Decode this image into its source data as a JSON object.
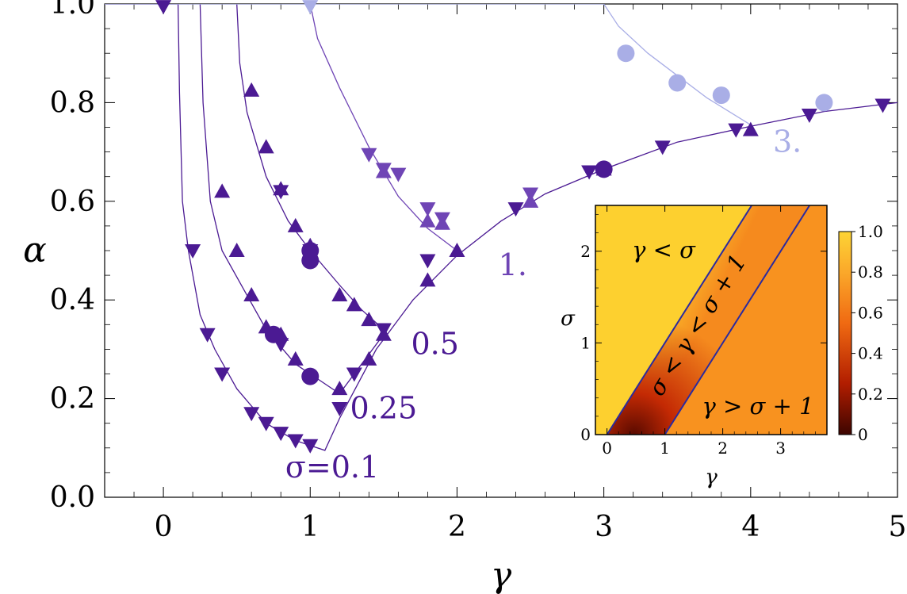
{
  "chart_data": {
    "type": "line",
    "xlabel": "γ",
    "ylabel": "α",
    "xlim": [
      -0.4,
      5
    ],
    "ylim": [
      0,
      1.0
    ],
    "x_ticks": [
      "0",
      "1",
      "2",
      "3",
      "4",
      "5"
    ],
    "y_ticks": [
      "0.0",
      "0.2",
      "0.4",
      "0.6",
      "0.8",
      "1.0"
    ],
    "colors": {
      "dark": "#4b1a93",
      "mid": "#6f45b5",
      "light": "#a9aee6"
    },
    "curve_labels": [
      {
        "text": "σ=0.1",
        "x": 1.15,
        "y": 0.04,
        "color": "#4b1a93"
      },
      {
        "text": "0.25",
        "x": 1.5,
        "y": 0.16,
        "color": "#4b1a93"
      },
      {
        "text": "0.5",
        "x": 1.85,
        "y": 0.29,
        "color": "#4b1a93"
      },
      {
        "text": "1.",
        "x": 2.38,
        "y": 0.45,
        "color": "#6f45b5"
      },
      {
        "text": "3.",
        "x": 4.25,
        "y": 0.7,
        "color": "#a9aee6"
      }
    ],
    "series": [
      {
        "sigma": 0.1,
        "color": "#4b1a93",
        "curve": [
          [
            -0.4,
            1
          ],
          [
            0.1,
            1
          ],
          [
            0.11,
            0.82
          ],
          [
            0.13,
            0.6
          ],
          [
            0.17,
            0.5
          ],
          [
            0.25,
            0.37
          ],
          [
            0.35,
            0.3
          ],
          [
            0.5,
            0.22
          ],
          [
            0.7,
            0.15
          ],
          [
            0.9,
            0.115
          ],
          [
            1.1,
            0.095
          ],
          [
            1.2,
            0.16
          ],
          [
            1.45,
            0.3
          ],
          [
            1.7,
            0.4
          ],
          [
            2.0,
            0.49
          ],
          [
            2.3,
            0.56
          ],
          [
            2.6,
            0.615
          ],
          [
            3.0,
            0.665
          ],
          [
            3.5,
            0.72
          ],
          [
            4.0,
            0.752
          ],
          [
            4.5,
            0.782
          ],
          [
            5,
            0.8
          ]
        ],
        "points_down": [
          [
            0,
            0.995
          ],
          [
            0.2,
            0.5
          ],
          [
            0.3,
            0.33
          ],
          [
            0.4,
            0.25
          ],
          [
            0.6,
            0.17
          ],
          [
            0.7,
            0.15
          ],
          [
            0.8,
            0.13
          ],
          [
            0.9,
            0.115
          ],
          [
            1.0,
            0.105
          ],
          [
            1.2,
            0.18
          ],
          [
            1.8,
            0.48
          ],
          [
            2.4,
            0.585
          ],
          [
            2.9,
            0.66
          ],
          [
            3.4,
            0.71
          ],
          [
            3.9,
            0.745
          ],
          [
            4.4,
            0.775
          ],
          [
            4.9,
            0.795
          ]
        ],
        "points_up": [],
        "points_circle": []
      },
      {
        "sigma": 0.25,
        "color": "#4b1a93",
        "curve": [
          [
            0.25,
            1
          ],
          [
            0.27,
            0.8
          ],
          [
            0.32,
            0.6
          ],
          [
            0.4,
            0.5
          ],
          [
            0.55,
            0.42
          ],
          [
            0.7,
            0.34
          ],
          [
            0.9,
            0.27
          ],
          [
            1.0,
            0.25
          ],
          [
            1.2,
            0.21
          ],
          [
            1.5,
            0.33
          ]
        ],
        "points_down": [
          [
            0.8,
            0.31
          ],
          [
            1.3,
            0.25
          ]
        ],
        "points_up": [
          [
            0.4,
            0.62
          ],
          [
            0.5,
            0.5
          ],
          [
            0.6,
            0.41
          ],
          [
            0.7,
            0.345
          ],
          [
            0.8,
            0.33
          ],
          [
            0.9,
            0.28
          ],
          [
            1.2,
            0.22
          ],
          [
            1.4,
            0.28
          ],
          [
            1.8,
            0.44
          ],
          [
            2.0,
            0.5
          ],
          [
            2.5,
            0.6
          ],
          [
            3.0,
            0.665
          ],
          [
            4.0,
            0.745
          ]
        ],
        "points_circle": [
          [
            0.75,
            0.33
          ],
          [
            1.0,
            0.245
          ],
          [
            3.0,
            0.665
          ]
        ]
      },
      {
        "sigma": 0.5,
        "color": "#4b1a93",
        "curve": [
          [
            0.5,
            1
          ],
          [
            0.52,
            0.88
          ],
          [
            0.57,
            0.78
          ],
          [
            0.7,
            0.65
          ],
          [
            0.85,
            0.56
          ],
          [
            1.0,
            0.5
          ],
          [
            1.2,
            0.43
          ],
          [
            1.35,
            0.38
          ],
          [
            1.5,
            0.34
          ]
        ],
        "points_down": [
          [
            0.8,
            0.62
          ],
          [
            1.0,
            0.5
          ],
          [
            1.5,
            0.34
          ]
        ],
        "points_up": [
          [
            0.6,
            0.825
          ],
          [
            0.7,
            0.71
          ],
          [
            0.8,
            0.625
          ],
          [
            0.9,
            0.55
          ],
          [
            1.0,
            0.51
          ],
          [
            1.2,
            0.41
          ],
          [
            1.3,
            0.39
          ],
          [
            1.4,
            0.36
          ],
          [
            1.5,
            0.33
          ]
        ],
        "points_circle": [
          [
            1.0,
            0.48
          ],
          [
            1.0,
            0.5
          ]
        ]
      },
      {
        "sigma": 1.0,
        "color": "#6f45b5",
        "curve": [
          [
            1.0,
            1
          ],
          [
            1.05,
            0.93
          ],
          [
            1.2,
            0.83
          ],
          [
            1.4,
            0.71
          ],
          [
            1.6,
            0.61
          ],
          [
            1.8,
            0.545
          ],
          [
            2.0,
            0.5
          ]
        ],
        "points_down": [
          [
            1.4,
            0.695
          ],
          [
            1.5,
            0.665
          ],
          [
            1.6,
            0.655
          ],
          [
            1.8,
            0.585
          ],
          [
            1.9,
            0.565
          ],
          [
            2.5,
            0.615
          ]
        ],
        "points_up": [
          [
            1.5,
            0.66
          ],
          [
            1.8,
            0.56
          ],
          [
            1.9,
            0.555
          ],
          [
            2.5,
            0.6
          ]
        ],
        "points_circle": []
      },
      {
        "sigma": 3.0,
        "color": "#a9aee6",
        "curve": [
          [
            -0.4,
            1
          ],
          [
            3.0,
            1
          ],
          [
            3.1,
            0.955
          ],
          [
            3.3,
            0.9
          ],
          [
            3.5,
            0.855
          ],
          [
            3.7,
            0.81
          ],
          [
            4.0,
            0.755
          ]
        ],
        "points_down": [
          [
            1.0,
            0.995
          ]
        ],
        "points_up": [],
        "points_circle": [
          [
            3.15,
            0.9
          ],
          [
            3.5,
            0.84
          ],
          [
            3.8,
            0.815
          ],
          [
            4.5,
            0.8
          ]
        ]
      }
    ],
    "inset": {
      "type": "heatmap",
      "xlabel": "γ",
      "ylabel": "σ",
      "xlim": [
        -0.2,
        3.8
      ],
      "ylim": [
        0,
        2.5
      ],
      "x_ticks": [
        "0",
        "1",
        "2",
        "3"
      ],
      "y_ticks": [
        "0",
        "1",
        "2"
      ],
      "colorbar_ticks": [
        "0",
        "0.2",
        "0.4",
        "0.6",
        "0.8",
        "1.0"
      ],
      "region_labels": [
        "γ < σ",
        "σ < γ < σ + 1",
        "γ > σ + 1"
      ]
    }
  }
}
